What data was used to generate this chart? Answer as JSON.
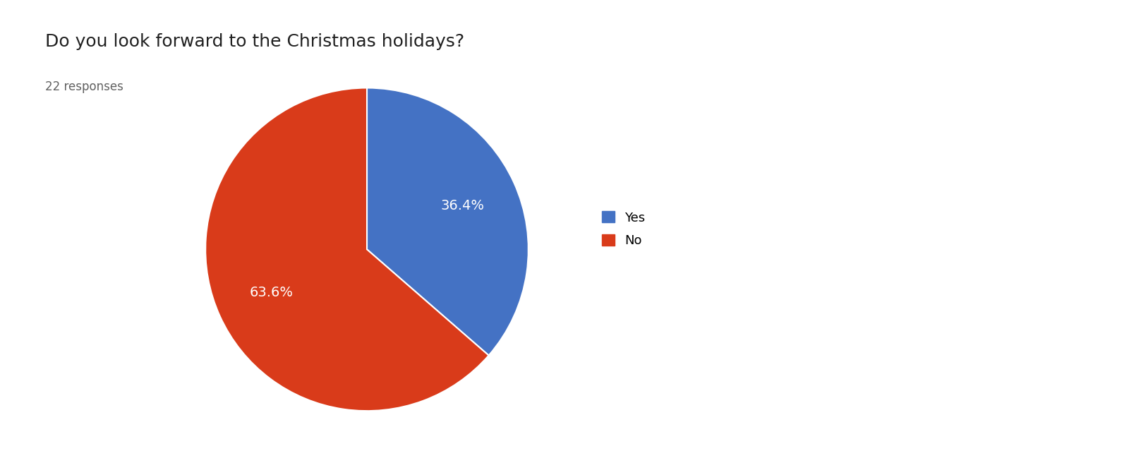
{
  "title": "Do you look forward to the Christmas holidays?",
  "subtitle": "22 responses",
  "labels": [
    "Yes",
    "No"
  ],
  "values": [
    36.4,
    63.6
  ],
  "colors": [
    "#4472C4",
    "#D93B1A"
  ],
  "autopct_labels": [
    "36.4%",
    "63.6%"
  ],
  "title_fontsize": 18,
  "subtitle_fontsize": 12,
  "legend_fontsize": 13,
  "autopct_fontsize": 14,
  "background_color": "#ffffff",
  "startangle": 90
}
